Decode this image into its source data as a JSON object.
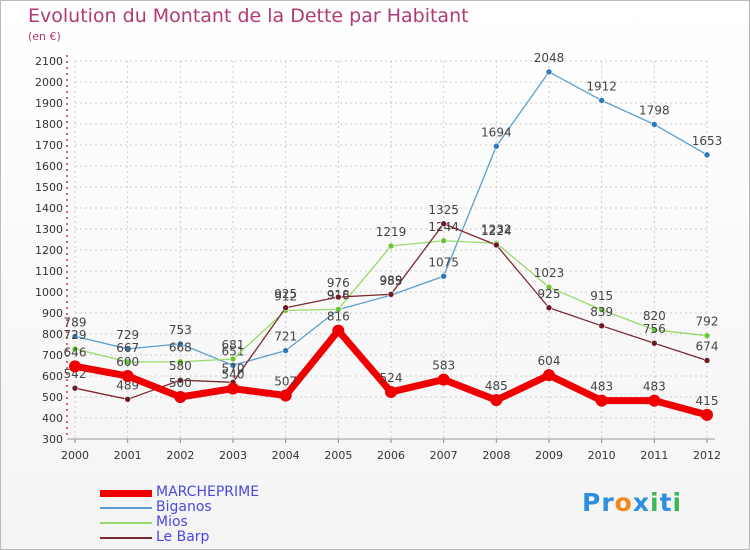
{
  "title": "Evolution du Montant de la Dette par Habitant",
  "unit": "(en €)",
  "logo": {
    "text": "Proxiti",
    "letters": [
      "P",
      "r",
      "o",
      "x",
      "i",
      "t",
      "i"
    ],
    "colors": [
      "#2e8fe0",
      "#2e8fe0",
      "#f08a1c",
      "#2e8fe0",
      "#3cb85a",
      "#2e8fe0",
      "#3cb85a"
    ]
  },
  "colors": {
    "title": "#b03a78",
    "grid": "#cccccc",
    "legend_text": "#4a4ae0"
  },
  "chart_data": {
    "type": "line",
    "x": [
      "2000",
      "2001",
      "2002",
      "2003",
      "2004",
      "2005",
      "2006",
      "2007",
      "2008",
      "2009",
      "2010",
      "2011",
      "2012"
    ],
    "ylim": [
      300,
      2100
    ],
    "yticks": [
      300,
      400,
      500,
      600,
      700,
      800,
      900,
      1000,
      1100,
      1200,
      1300,
      1400,
      1500,
      1600,
      1700,
      1800,
      1900,
      2000,
      2100
    ],
    "grid": true,
    "legend_position": "bottom-left",
    "series": [
      {
        "name": "Biganos",
        "color": "#5a9fd0",
        "marker": "#2e78c0",
        "width": 1.3,
        "values": [
          789,
          729,
          753,
          651,
          721,
          916,
          985,
          1075,
          1694,
          2048,
          1912,
          1798,
          1653
        ],
        "labels": [
          "789",
          "729",
          "753",
          "651",
          "721",
          "916",
          "985",
          "1075",
          "1694",
          "2048",
          "1912",
          "1798",
          "1653"
        ]
      },
      {
        "name": "Mios",
        "color": "#99d86a",
        "marker": "#6cc534",
        "width": 1.3,
        "values": [
          729,
          667,
          668,
          681,
          912,
          918,
          1219,
          1244,
          1232,
          1023,
          915,
          820,
          792
        ],
        "labels": [
          "729",
          "667",
          "668",
          "681",
          "912",
          "918",
          "1219",
          "1244",
          "1232",
          "1023",
          "915",
          "820",
          "792"
        ]
      },
      {
        "name": "Le Barp",
        "color": "#7a2a30",
        "marker": "#6a1c22",
        "width": 1.3,
        "values": [
          542,
          489,
          580,
          570,
          925,
          976,
          989,
          1325,
          1224,
          925,
          839,
          756,
          674
        ],
        "labels": [
          "542",
          "489",
          "580",
          "570",
          "925",
          "976",
          "989",
          "1325",
          "1224",
          "925",
          "839",
          "756",
          "674"
        ]
      },
      {
        "name": "MARCHEPRIME",
        "color": "#ee0000",
        "marker": "#ee0000",
        "width": 7,
        "values": [
          646,
          600,
          500,
          540,
          507,
          816,
          524,
          583,
          485,
          604,
          483,
          483,
          415
        ],
        "labels": [
          "646",
          "600",
          "500",
          "540",
          "507",
          "816",
          "524",
          "583",
          "485",
          "604",
          "483",
          "483",
          "415"
        ]
      }
    ],
    "legend_order": [
      "MARCHEPRIME",
      "Biganos",
      "Mios",
      "Le Barp"
    ]
  }
}
